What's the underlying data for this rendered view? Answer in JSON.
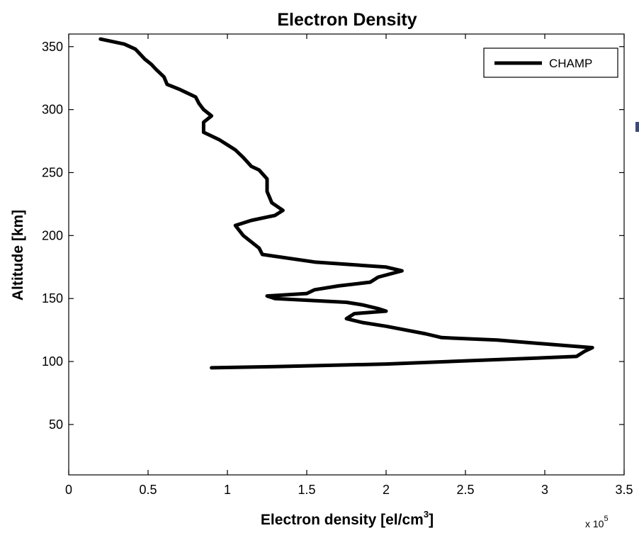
{
  "chart_data": {
    "type": "line",
    "title": "Electron Density",
    "xlabel": "Electron density [el/cm",
    "xlabel_sup": "3",
    "xlabel_end": "]",
    "ylabel": "Altitude [km]",
    "x_multiplier": "x 10",
    "x_multiplier_exp": "5",
    "xlim": [
      0,
      3.5
    ],
    "ylim": [
      10,
      360
    ],
    "xticks": [
      0,
      0.5,
      1,
      1.5,
      2,
      2.5,
      3,
      3.5
    ],
    "yticks": [
      50,
      100,
      150,
      200,
      250,
      300,
      350
    ],
    "xtick_labels": [
      "0",
      "0.5",
      "1",
      "1.5",
      "2",
      "2.5",
      "3",
      "3.5"
    ],
    "ytick_labels": [
      "50",
      "100",
      "150",
      "200",
      "250",
      "300",
      "350"
    ],
    "grid": false,
    "legend": {
      "position": "top-right",
      "entries": [
        "CHAMP"
      ]
    },
    "series": [
      {
        "name": "CHAMP",
        "color": "#000000",
        "x": [
          0.9,
          1.3,
          2.0,
          2.8,
          3.2,
          3.25,
          3.3,
          3.1,
          2.7,
          2.35,
          2.25,
          2.0,
          1.85,
          1.75,
          1.8,
          2.0,
          1.95,
          1.85,
          1.75,
          1.3,
          1.25,
          1.5,
          1.55,
          1.7,
          1.9,
          1.95,
          2.1,
          2.0,
          1.55,
          1.22,
          1.2,
          1.1,
          1.05,
          1.15,
          1.3,
          1.35,
          1.28,
          1.25,
          1.25,
          1.2,
          1.15,
          1.1,
          1.05,
          1.0,
          0.95,
          0.85,
          0.85,
          0.9,
          0.85,
          0.82,
          0.8,
          0.7,
          0.62,
          0.6,
          0.55,
          0.52,
          0.48,
          0.45,
          0.42,
          0.35,
          0.2
        ],
        "y": [
          95,
          96,
          98,
          102,
          104,
          108,
          111,
          113,
          117,
          119,
          122,
          128,
          131,
          134,
          138,
          140,
          142,
          145,
          147,
          150,
          152,
          154,
          157,
          160,
          163,
          167,
          172,
          175,
          179,
          185,
          190,
          200,
          208,
          212,
          216,
          220,
          226,
          235,
          245,
          252,
          255,
          262,
          268,
          272,
          276,
          282,
          290,
          295,
          300,
          305,
          310,
          316,
          320,
          326,
          332,
          336,
          340,
          344,
          348,
          352,
          356
        ]
      }
    ]
  }
}
